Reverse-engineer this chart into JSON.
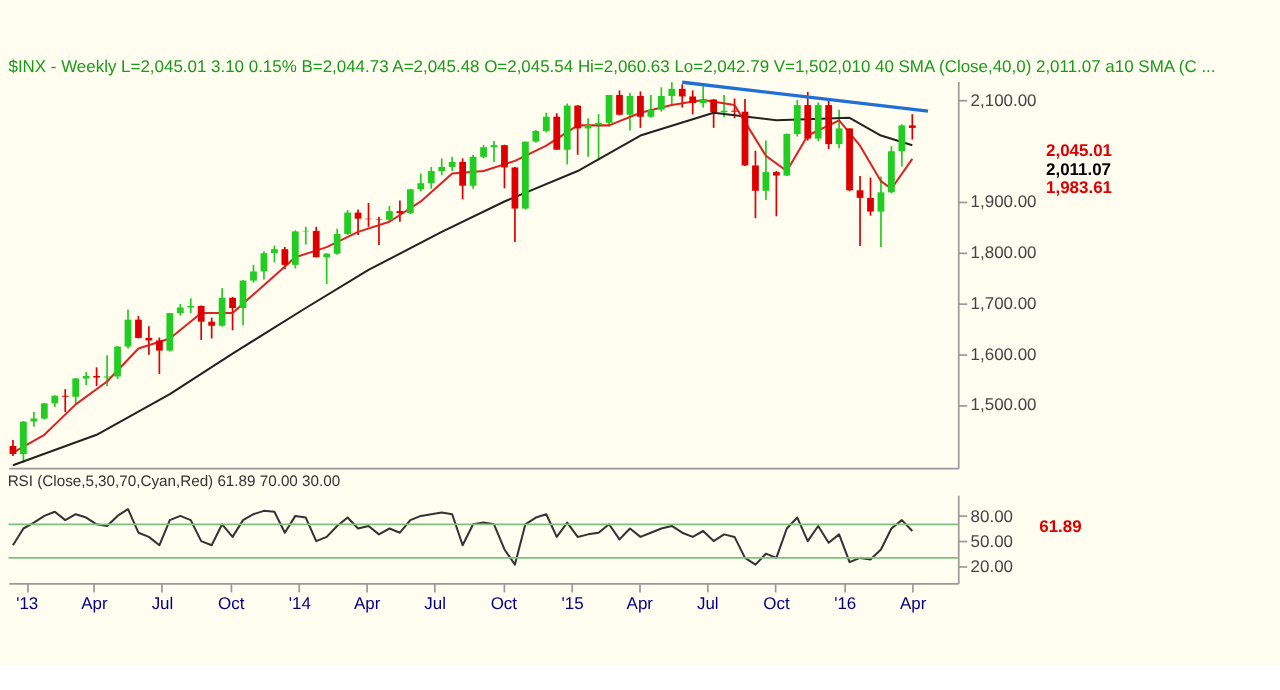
{
  "chart_data": [
    {
      "type": "candlestick",
      "title": "$INX - Weekly  L=2,045.01  3.10  0.15%  B=2,044.73  A=2,045.48  O=2,045.54  Hi=2,060.63  Lo=2,042.79  V=1,502,010  40 SMA (Close,40,0)  2,011.07  a10 SMA (C ...",
      "x": [
        "2012-12-14",
        "2012-12-28",
        "2013-01-11",
        "2013-01-25",
        "2013-02-08",
        "2013-02-22",
        "2013-03-08",
        "2013-03-22",
        "2013-04-05",
        "2013-04-19",
        "2013-05-03",
        "2013-05-17",
        "2013-05-31",
        "2013-06-14",
        "2013-06-28",
        "2013-07-12",
        "2013-07-26",
        "2013-08-09",
        "2013-08-23",
        "2013-09-06",
        "2013-09-20",
        "2013-10-04",
        "2013-10-18",
        "2013-11-01",
        "2013-11-15",
        "2013-11-29",
        "2013-12-13",
        "2013-12-27",
        "2014-01-10",
        "2014-01-24",
        "2014-02-07",
        "2014-02-21",
        "2014-03-07",
        "2014-03-21",
        "2014-04-04",
        "2014-04-18",
        "2014-05-02",
        "2014-05-16",
        "2014-05-30",
        "2014-06-13",
        "2014-06-27",
        "2014-07-11",
        "2014-07-25",
        "2014-08-08",
        "2014-08-22",
        "2014-09-05",
        "2014-09-19",
        "2014-10-03",
        "2014-10-17",
        "2014-10-31",
        "2014-11-14",
        "2014-11-28",
        "2014-12-12",
        "2014-12-26",
        "2015-01-09",
        "2015-01-23",
        "2015-02-06",
        "2015-02-20",
        "2015-03-06",
        "2015-03-20",
        "2015-04-03",
        "2015-04-17",
        "2015-05-01",
        "2015-05-15",
        "2015-05-29",
        "2015-06-12",
        "2015-06-26",
        "2015-07-10",
        "2015-07-24",
        "2015-08-07",
        "2015-08-21",
        "2015-09-04",
        "2015-09-18",
        "2015-10-02",
        "2015-10-16",
        "2015-10-30",
        "2015-11-13",
        "2015-11-27",
        "2015-12-11",
        "2015-12-25",
        "2016-01-08",
        "2016-01-22",
        "2016-02-05",
        "2016-02-19",
        "2016-03-04",
        "2016-03-18",
        "2016-04-01"
      ],
      "ohlc": [
        [
          1418,
          1430,
          1398,
          1402
        ],
        [
          1402,
          1467,
          1385,
          1466
        ],
        [
          1466,
          1485,
          1456,
          1472
        ],
        [
          1472,
          1503,
          1470,
          1502
        ],
        [
          1502,
          1518,
          1495,
          1517
        ],
        [
          1517,
          1530,
          1485,
          1515
        ],
        [
          1515,
          1552,
          1500,
          1551
        ],
        [
          1551,
          1564,
          1538,
          1556
        ],
        [
          1556,
          1573,
          1536,
          1553
        ],
        [
          1553,
          1597,
          1536,
          1555
        ],
        [
          1555,
          1615,
          1550,
          1614
        ],
        [
          1614,
          1687,
          1610,
          1667
        ],
        [
          1667,
          1674,
          1630,
          1631
        ],
        [
          1631,
          1654,
          1598,
          1626
        ],
        [
          1626,
          1632,
          1560,
          1606
        ],
        [
          1606,
          1680,
          1604,
          1680
        ],
        [
          1680,
          1698,
          1675,
          1691
        ],
        [
          1691,
          1709,
          1680,
          1694
        ],
        [
          1694,
          1695,
          1627,
          1663
        ],
        [
          1663,
          1671,
          1630,
          1655
        ],
        [
          1655,
          1729,
          1653,
          1710
        ],
        [
          1710,
          1712,
          1646,
          1690
        ],
        [
          1690,
          1745,
          1656,
          1744
        ],
        [
          1744,
          1775,
          1740,
          1762
        ],
        [
          1762,
          1802,
          1746,
          1798
        ],
        [
          1798,
          1813,
          1780,
          1806
        ],
        [
          1806,
          1810,
          1767,
          1775
        ],
        [
          1775,
          1843,
          1768,
          1841
        ],
        [
          1841,
          1850,
          1815,
          1842
        ],
        [
          1842,
          1850,
          1790,
          1790
        ],
        [
          1790,
          1798,
          1737,
          1797
        ],
        [
          1797,
          1846,
          1795,
          1836
        ],
        [
          1836,
          1883,
          1834,
          1878
        ],
        [
          1878,
          1884,
          1834,
          1866
        ],
        [
          1866,
          1897,
          1850,
          1865
        ],
        [
          1865,
          1870,
          1814,
          1864
        ],
        [
          1864,
          1891,
          1860,
          1881
        ],
        [
          1881,
          1902,
          1860,
          1877
        ],
        [
          1877,
          1925,
          1875,
          1924
        ],
        [
          1924,
          1955,
          1920,
          1936
        ],
        [
          1936,
          1968,
          1925,
          1960
        ],
        [
          1960,
          1985,
          1952,
          1968
        ],
        [
          1968,
          1988,
          1960,
          1978
        ],
        [
          1978,
          1985,
          1904,
          1931
        ],
        [
          1931,
          1992,
          1925,
          1988
        ],
        [
          1988,
          2011,
          1985,
          2007
        ],
        [
          2007,
          2019,
          1978,
          2011
        ],
        [
          2011,
          2012,
          1926,
          1967
        ],
        [
          1967,
          1968,
          1820,
          1886
        ],
        [
          1886,
          2018,
          1884,
          2018
        ],
        [
          2018,
          2041,
          2016,
          2039
        ],
        [
          2039,
          2075,
          2036,
          2067
        ],
        [
          2067,
          2074,
          2002,
          2002
        ],
        [
          2002,
          2093,
          1973,
          2089
        ],
        [
          2089,
          2090,
          1992,
          2044
        ],
        [
          2044,
          2064,
          1988,
          2051
        ],
        [
          2051,
          2072,
          1981,
          2055
        ],
        [
          2055,
          2110,
          2048,
          2110
        ],
        [
          2110,
          2119,
          2070,
          2071
        ],
        [
          2071,
          2114,
          2040,
          2108
        ],
        [
          2108,
          2117,
          2045,
          2067
        ],
        [
          2067,
          2110,
          2065,
          2081
        ],
        [
          2081,
          2125,
          2077,
          2108
        ],
        [
          2108,
          2135,
          2090,
          2122
        ],
        [
          2122,
          2131,
          2085,
          2107
        ],
        [
          2107,
          2119,
          2072,
          2094
        ],
        [
          2094,
          2127,
          2085,
          2101
        ],
        [
          2101,
          2102,
          2045,
          2076
        ],
        [
          2076,
          2110,
          2066,
          2079
        ],
        [
          2079,
          2103,
          2064,
          2077
        ],
        [
          2077,
          2102,
          1970,
          1971
        ],
        [
          1971,
          2000,
          1867,
          1921
        ],
        [
          1921,
          2020,
          1903,
          1958
        ],
        [
          1958,
          1960,
          1871,
          1951
        ],
        [
          1951,
          2034,
          1950,
          2033
        ],
        [
          2033,
          2100,
          2028,
          2090
        ],
        [
          2090,
          2116,
          2020,
          2024
        ],
        [
          2024,
          2095,
          2019,
          2090
        ],
        [
          2090,
          2104,
          2003,
          2013
        ],
        [
          2013,
          2081,
          2005,
          2044
        ],
        [
          2044,
          2044,
          1920,
          1922
        ],
        [
          1922,
          1950,
          1812,
          1907
        ],
        [
          1907,
          1947,
          1872,
          1880
        ],
        [
          1880,
          1949,
          1810,
          1918
        ],
        [
          1918,
          2009,
          1916,
          1999
        ],
        [
          1999,
          2052,
          1969,
          2050
        ],
        [
          2050,
          2072,
          2022,
          2045
        ]
      ],
      "colors": [
        "#dd0000",
        "#22cc22",
        "#22cc22",
        "#22cc22",
        "#22cc22",
        "#dd0000",
        "#22cc22",
        "#22cc22",
        "#dd0000",
        "#22cc22",
        "#22cc22",
        "#22cc22",
        "#dd0000",
        "#dd0000",
        "#dd0000",
        "#22cc22",
        "#22cc22",
        "#22cc22",
        "#dd0000",
        "#dd0000",
        "#22cc22",
        "#dd0000",
        "#22cc22",
        "#22cc22",
        "#22cc22",
        "#22cc22",
        "#dd0000",
        "#22cc22",
        "#22cc22",
        "#dd0000",
        "#22cc22",
        "#22cc22",
        "#22cc22",
        "#dd0000",
        "#dd0000",
        "#dd0000",
        "#22cc22",
        "#dd0000",
        "#22cc22",
        "#22cc22",
        "#22cc22",
        "#22cc22",
        "#22cc22",
        "#dd0000",
        "#22cc22",
        "#22cc22",
        "#22cc22",
        "#dd0000",
        "#dd0000",
        "#22cc22",
        "#22cc22",
        "#22cc22",
        "#dd0000",
        "#22cc22",
        "#dd0000",
        "#22cc22",
        "#22cc22",
        "#22cc22",
        "#dd0000",
        "#22cc22",
        "#dd0000",
        "#22cc22",
        "#22cc22",
        "#22cc22",
        "#dd0000",
        "#dd0000",
        "#22cc22",
        "#dd0000",
        "#22cc22",
        "#dd0000",
        "#dd0000",
        "#dd0000",
        "#22cc22",
        "#dd0000",
        "#22cc22",
        "#22cc22",
        "#dd0000",
        "#22cc22",
        "#dd0000",
        "#22cc22",
        "#dd0000",
        "#dd0000",
        "#dd0000",
        "#22cc22",
        "#22cc22",
        "#22cc22",
        "#dd0000"
      ],
      "series": [
        {
          "type": "line",
          "color": "#222222",
          "x": [
            "2012-12-14",
            "2013-04-05",
            "2013-07-12",
            "2013-10-04",
            "2014-01-10",
            "2014-04-04",
            "2014-07-11",
            "2014-10-03",
            "2015-01-09",
            "2015-04-03",
            "2015-07-10",
            "2015-10-02",
            "2016-01-08",
            "2016-02-19",
            "2016-04-01"
          ],
          "values": [
            1380,
            1440,
            1520,
            1600,
            1690,
            1765,
            1840,
            1900,
            1960,
            2030,
            2075,
            2060,
            2065,
            2030,
            2011
          ]
        },
        {
          "type": "line",
          "color": "#dd2222",
          "x": [
            "2012-12-14",
            "2013-01-25",
            "2013-03-08",
            "2013-04-19",
            "2013-05-31",
            "2013-07-12",
            "2013-08-23",
            "2013-10-04",
            "2013-11-15",
            "2013-12-27",
            "2014-02-07",
            "2014-03-21",
            "2014-05-02",
            "2014-06-13",
            "2014-07-25",
            "2014-09-05",
            "2014-10-17",
            "2014-11-28",
            "2015-01-09",
            "2015-02-20",
            "2015-04-03",
            "2015-05-15",
            "2015-06-26",
            "2015-08-07",
            "2015-09-18",
            "2015-10-16",
            "2015-11-13",
            "2015-12-25",
            "2016-01-22",
            "2016-02-19",
            "2016-03-04",
            "2016-04-01"
          ],
          "values": [
            1405,
            1440,
            1500,
            1545,
            1610,
            1630,
            1680,
            1680,
            1735,
            1790,
            1810,
            1840,
            1860,
            1900,
            1955,
            1960,
            1980,
            2010,
            2050,
            2050,
            2075,
            2090,
            2100,
            2090,
            1990,
            1960,
            2030,
            2060,
            2010,
            1940,
            1925,
            1984
          ]
        },
        {
          "type": "line",
          "color": "#1f6fd6",
          "x": [
            "2015-05-29",
            "2016-04-22"
          ],
          "values": [
            2135,
            2078
          ]
        }
      ],
      "annotations": [
        "2,045.01",
        "2,011.07",
        "1,983.61"
      ],
      "xlim": [
        "2012-12-08",
        "2016-06-01"
      ],
      "ylim": [
        1375,
        2137
      ],
      "yticks": [
        {
          "value": 1500,
          "label": "1,500.00"
        },
        {
          "value": 1600,
          "label": "1,600.00"
        },
        {
          "value": 1700,
          "label": "1,700.00"
        },
        {
          "value": 1800,
          "label": "1,800.00"
        },
        {
          "value": 1900,
          "label": "1,900.00"
        },
        {
          "value": 2100,
          "label": "2,100.00"
        }
      ],
      "tick_labels": "y",
      "grid": false,
      "legend": false
    },
    {
      "type": "line",
      "title": "RSI (Close,5,30,70,Cyan,Red)  61.89  70.00  30.00",
      "x": [
        "2012-12-14",
        "2012-12-28",
        "2013-01-11",
        "2013-01-25",
        "2013-02-08",
        "2013-02-22",
        "2013-03-08",
        "2013-03-22",
        "2013-04-05",
        "2013-04-19",
        "2013-05-03",
        "2013-05-17",
        "2013-05-31",
        "2013-06-14",
        "2013-06-28",
        "2013-07-12",
        "2013-07-26",
        "2013-08-09",
        "2013-08-23",
        "2013-09-06",
        "2013-09-20",
        "2013-10-04",
        "2013-10-18",
        "2013-11-01",
        "2013-11-15",
        "2013-11-29",
        "2013-12-13",
        "2013-12-27",
        "2014-01-10",
        "2014-01-24",
        "2014-02-07",
        "2014-02-21",
        "2014-03-07",
        "2014-03-21",
        "2014-04-04",
        "2014-04-18",
        "2014-05-02",
        "2014-05-16",
        "2014-05-30",
        "2014-06-13",
        "2014-06-27",
        "2014-07-11",
        "2014-07-25",
        "2014-08-08",
        "2014-08-22",
        "2014-09-05",
        "2014-09-19",
        "2014-10-03",
        "2014-10-17",
        "2014-10-31",
        "2014-11-14",
        "2014-11-28",
        "2014-12-12",
        "2014-12-26",
        "2015-01-09",
        "2015-01-23",
        "2015-02-06",
        "2015-02-20",
        "2015-03-06",
        "2015-03-20",
        "2015-04-03",
        "2015-04-17",
        "2015-05-01",
        "2015-05-15",
        "2015-05-29",
        "2015-06-12",
        "2015-06-26",
        "2015-07-10",
        "2015-07-24",
        "2015-08-07",
        "2015-08-21",
        "2015-09-04",
        "2015-09-18",
        "2015-10-02",
        "2015-10-16",
        "2015-10-30",
        "2015-11-13",
        "2015-11-27",
        "2015-12-11",
        "2015-12-25",
        "2016-01-08",
        "2016-01-22",
        "2016-02-05",
        "2016-02-19",
        "2016-03-04",
        "2016-03-18",
        "2016-04-01"
      ],
      "series": [
        {
          "color": "#333333",
          "values": [
            45,
            65,
            72,
            80,
            85,
            75,
            82,
            78,
            70,
            68,
            80,
            88,
            60,
            55,
            45,
            75,
            80,
            75,
            50,
            45,
            70,
            55,
            75,
            82,
            86,
            85,
            60,
            80,
            78,
            50,
            55,
            68,
            78,
            65,
            68,
            58,
            65,
            60,
            75,
            80,
            82,
            84,
            82,
            45,
            70,
            72,
            70,
            40,
            22,
            70,
            78,
            82,
            55,
            72,
            55,
            58,
            60,
            70,
            52,
            65,
            55,
            60,
            65,
            68,
            60,
            55,
            62,
            50,
            58,
            55,
            30,
            22,
            35,
            30,
            65,
            78,
            50,
            68,
            48,
            58,
            25,
            30,
            28,
            40,
            65,
            75,
            62
          ]
        }
      ],
      "ref_lines": [
        {
          "axis": "y",
          "value": 70,
          "color": "#7fbf7f"
        },
        {
          "axis": "y",
          "value": 30,
          "color": "#7fbf7f"
        }
      ],
      "annotations": [
        "61.89"
      ],
      "xlim": [
        "2012-12-08",
        "2016-06-01"
      ],
      "ylim": [
        0,
        105
      ],
      "xticks": [
        {
          "value": "2013-01-01",
          "label": "'13"
        },
        {
          "value": "2013-04-01",
          "label": "Apr"
        },
        {
          "value": "2013-07-01",
          "label": "Jul"
        },
        {
          "value": "2013-10-01",
          "label": "Oct"
        },
        {
          "value": "2014-01-01",
          "label": "'14"
        },
        {
          "value": "2014-04-01",
          "label": "Apr"
        },
        {
          "value": "2014-07-01",
          "label": "Jul"
        },
        {
          "value": "2014-10-01",
          "label": "Oct"
        },
        {
          "value": "2015-01-01",
          "label": "'15"
        },
        {
          "value": "2015-04-01",
          "label": "Apr"
        },
        {
          "value": "2015-07-01",
          "label": "Jul"
        },
        {
          "value": "2015-10-01",
          "label": "Oct"
        },
        {
          "value": "2016-01-01",
          "label": "'16"
        },
        {
          "value": "2016-04-01",
          "label": "Apr"
        }
      ],
      "yticks": [
        {
          "value": 20,
          "label": "20.00"
        },
        {
          "value": 50,
          "label": "50.00"
        },
        {
          "value": 80,
          "label": "80.00"
        }
      ],
      "grid": false,
      "legend": false
    }
  ]
}
